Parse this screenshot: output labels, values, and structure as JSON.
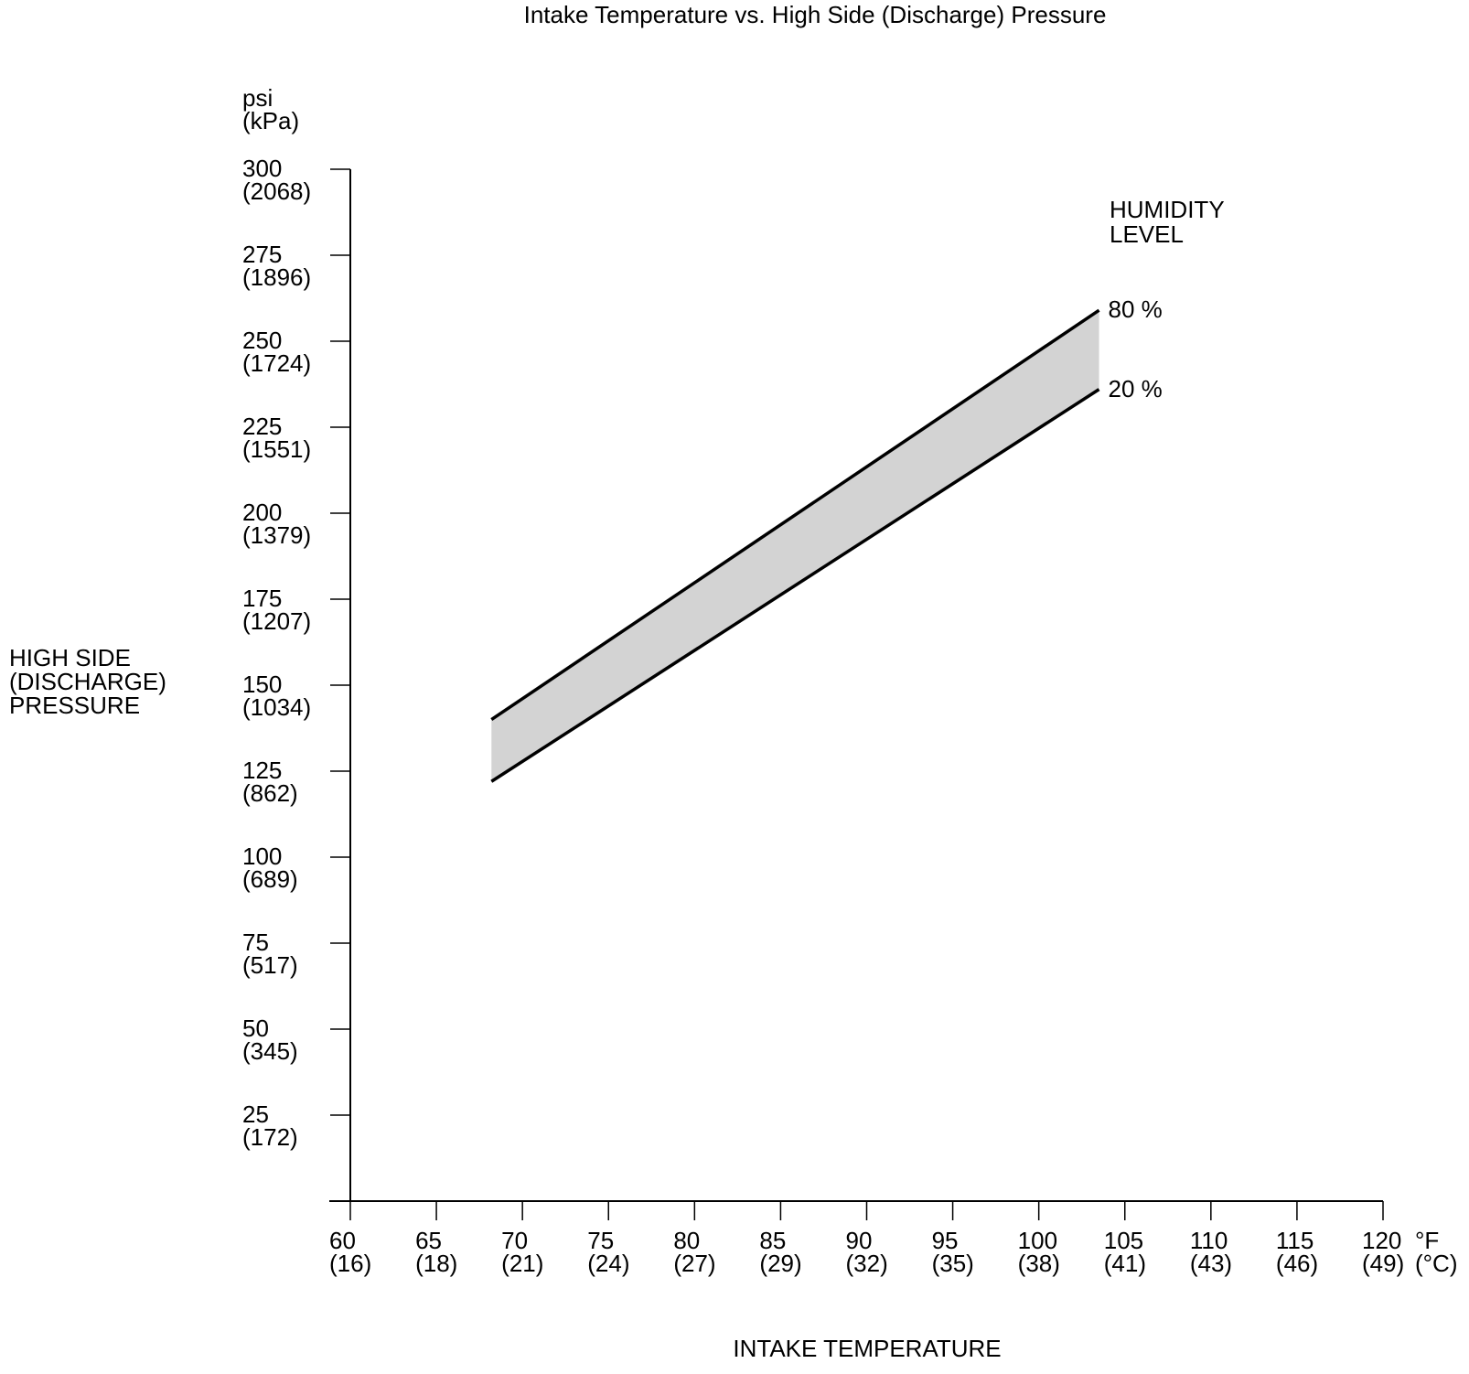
{
  "title": "Intake Temperature vs. High Side (Discharge) Pressure",
  "y_axis": {
    "unit_lines": [
      "psi",
      "(kPa)"
    ],
    "title_lines": [
      "HIGH SIDE",
      "(DISCHARGE)",
      "PRESSURE"
    ],
    "ticks": [
      {
        "psi": 300,
        "kpa": 2068
      },
      {
        "psi": 275,
        "kpa": 1896
      },
      {
        "psi": 250,
        "kpa": 1724
      },
      {
        "psi": 225,
        "kpa": 1551
      },
      {
        "psi": 200,
        "kpa": 1379
      },
      {
        "psi": 175,
        "kpa": 1207
      },
      {
        "psi": 150,
        "kpa": 1034
      },
      {
        "psi": 125,
        "kpa": 862
      },
      {
        "psi": 100,
        "kpa": 689
      },
      {
        "psi": 75,
        "kpa": 517
      },
      {
        "psi": 50,
        "kpa": 345
      },
      {
        "psi": 25,
        "kpa": 172
      }
    ]
  },
  "x_axis": {
    "title": "INTAKE TEMPERATURE",
    "unit_lines": [
      "°F",
      "(°C)"
    ],
    "ticks": [
      {
        "f": 60,
        "c": 16
      },
      {
        "f": 65,
        "c": 18
      },
      {
        "f": 70,
        "c": 21
      },
      {
        "f": 75,
        "c": 24
      },
      {
        "f": 80,
        "c": 27
      },
      {
        "f": 85,
        "c": 29
      },
      {
        "f": 90,
        "c": 32
      },
      {
        "f": 95,
        "c": 35
      },
      {
        "f": 100,
        "c": 38
      },
      {
        "f": 105,
        "c": 41
      },
      {
        "f": 110,
        "c": 43
      },
      {
        "f": 115,
        "c": 46
      },
      {
        "f": 120,
        "c": 49
      }
    ]
  },
  "legend": {
    "title_lines": [
      "HUMIDITY",
      "LEVEL"
    ]
  },
  "chart_data": {
    "type": "area",
    "title": "Intake Temperature vs. High Side (Discharge) Pressure",
    "xlabel": "INTAKE TEMPERATURE",
    "ylabel": "HIGH SIDE (DISCHARGE) PRESSURE",
    "x_unit": "°F (°C)",
    "y_unit": "psi (kPa)",
    "xlim": [
      60,
      120
    ],
    "ylim": [
      0,
      300
    ],
    "x_tick_step_f": 5,
    "y_tick_step_psi": 25,
    "grid": false,
    "legend_title": "HUMIDITY LEVEL",
    "band_fill": "#d3d3d3",
    "line_color": "#000000",
    "series": [
      {
        "name": "80 %",
        "humidity_percent": 80,
        "x_f": [
          68.2,
          103.5
        ],
        "y_psi": [
          140,
          259
        ]
      },
      {
        "name": "20 %",
        "humidity_percent": 20,
        "x_f": [
          68.2,
          103.5
        ],
        "y_psi": [
          122,
          236
        ]
      }
    ]
  }
}
